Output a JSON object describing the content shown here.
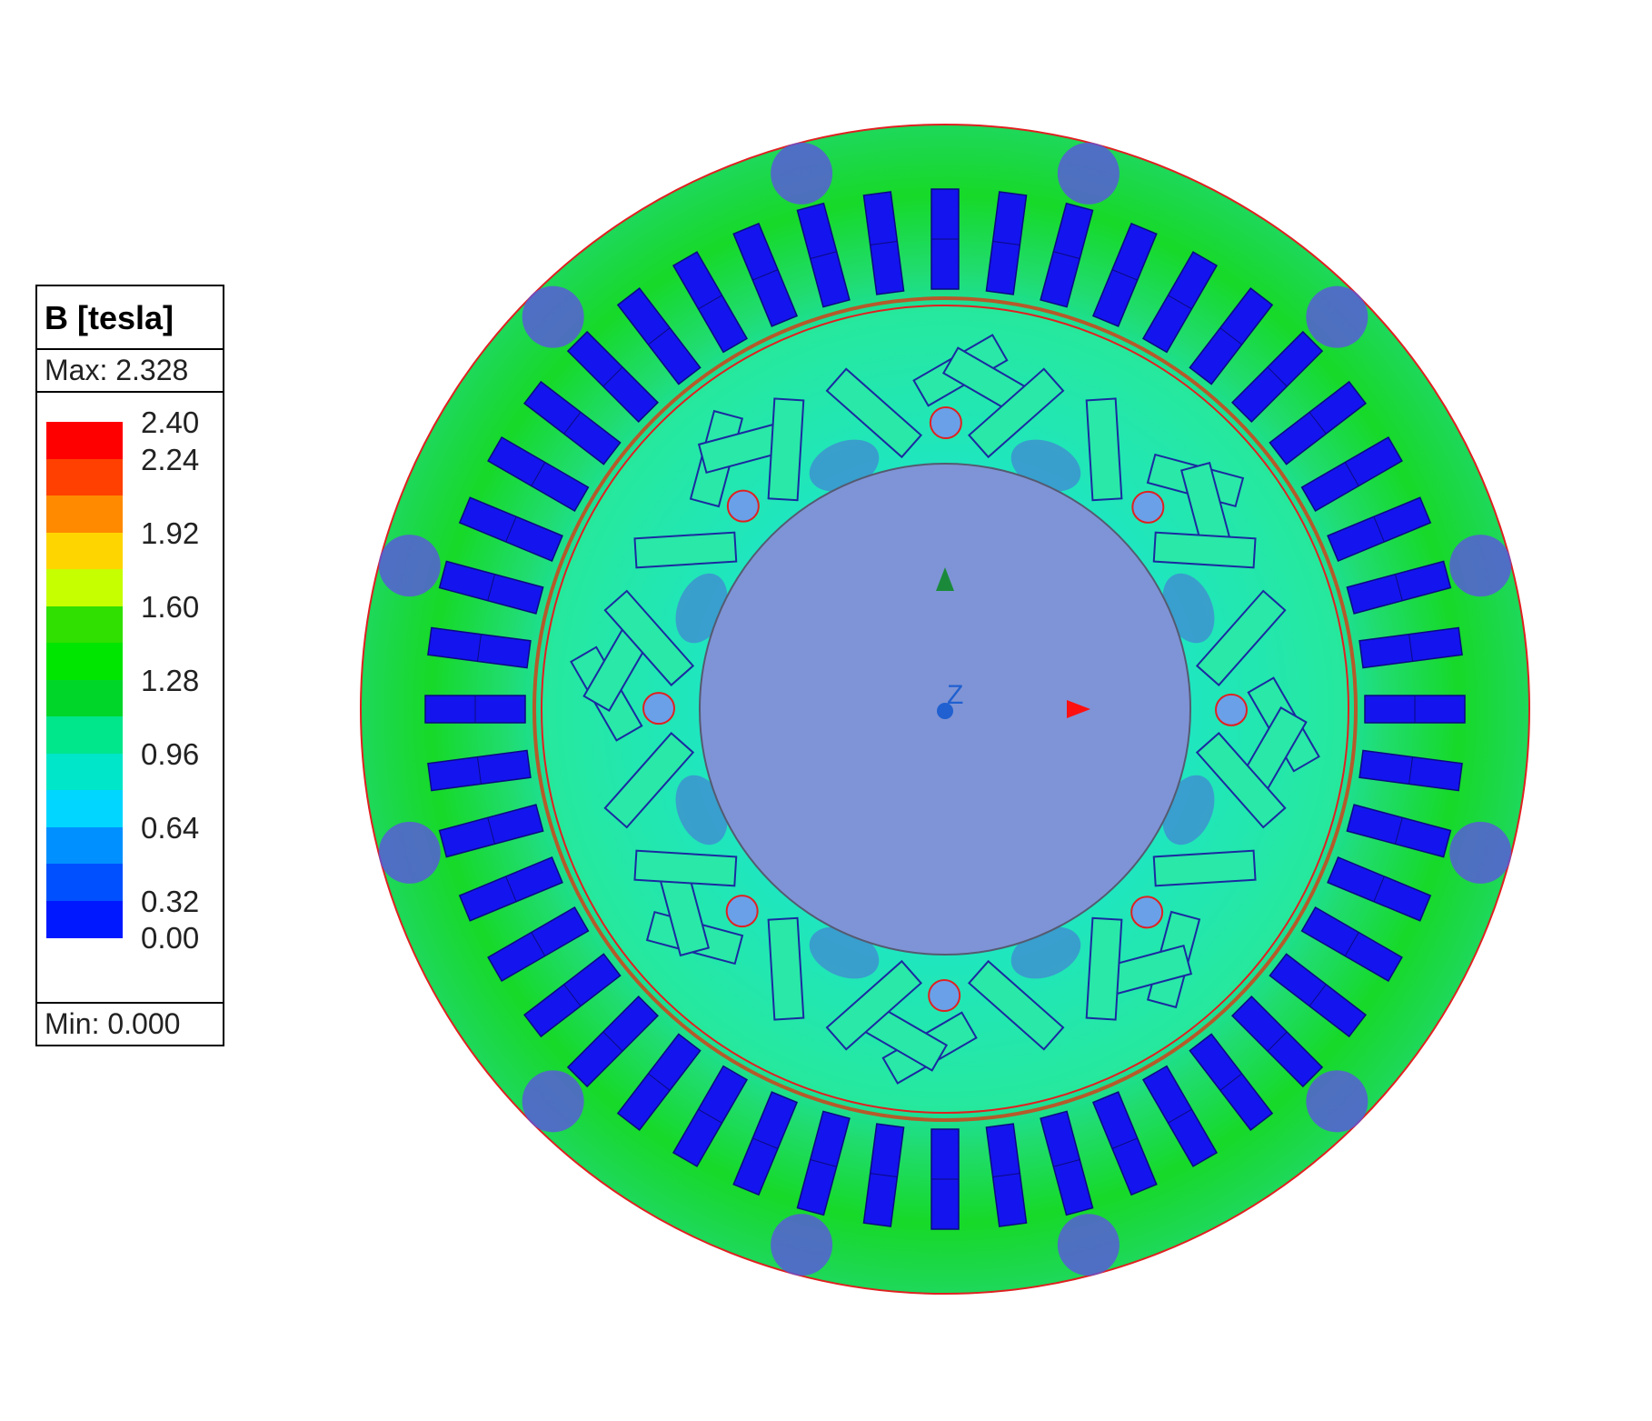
{
  "legend": {
    "title": "B [tesla]",
    "max_label": "Max: 2.328",
    "min_label": "Min: 0.000",
    "colors": [
      "#ff0000",
      "#ff4000",
      "#ff8a00",
      "#ffd500",
      "#c6ff00",
      "#2fe000",
      "#00e600",
      "#00d62a",
      "#00e68a",
      "#00e6c8",
      "#00d6ff",
      "#0090ff",
      "#0050ff",
      "#0018ff"
    ],
    "ticks": [
      "2.40",
      "2.24",
      "1.92",
      "1.60",
      "1.28",
      "0.96",
      "0.64",
      "0.32",
      "0.00"
    ]
  },
  "viewport": {
    "axis_z_label": "Z",
    "colors": {
      "stator": "#16d928",
      "stator_low": "#19e6c4",
      "slot": "#1414ee",
      "rotor": "#23e6b0",
      "magnet": "#2ae8a8",
      "shaft": "#7f94d6",
      "outline": "#e02020",
      "axis_x": "#ff1010",
      "axis_y": "#1a8a3a",
      "axis_z": "#2060d0",
      "dark_region": "#5b55e0"
    }
  }
}
